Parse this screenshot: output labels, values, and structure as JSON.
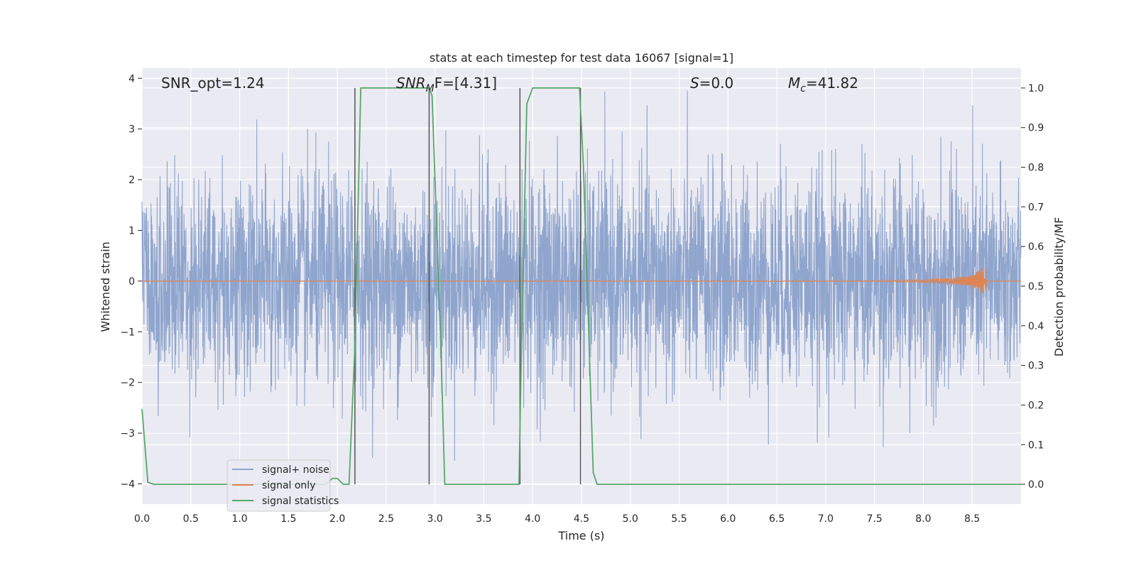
{
  "chart_data": {
    "type": "line",
    "title": "stats at each timestep for test data 16067 [signal=1]",
    "xlabel": "Time (s)",
    "ylabel": "Whitened strain",
    "y2label": "Detection probability/MF",
    "xlim": [
      0.0,
      9.0
    ],
    "ylim": [
      -4.4,
      4.2
    ],
    "y2lim": [
      -0.05,
      1.05
    ],
    "x_ticks": [
      "0.0",
      "0.5",
      "1.0",
      "1.5",
      "2.0",
      "2.5",
      "3.0",
      "3.5",
      "4.0",
      "4.5",
      "5.0",
      "5.5",
      "6.0",
      "6.5",
      "7.0",
      "7.5",
      "8.0",
      "8.5"
    ],
    "y_ticks": [
      "−4",
      "−3",
      "−2",
      "−1",
      "0",
      "1",
      "2",
      "3",
      "4"
    ],
    "y2_ticks": [
      "0.0",
      "0.1",
      "0.2",
      "0.3",
      "0.4",
      "0.5",
      "0.6",
      "0.7",
      "0.8",
      "0.9",
      "1.0"
    ],
    "grid": true,
    "legend_position": "lower-left",
    "annotations": {
      "snr_opt": "SNR_opt=1.24",
      "snr_mf_base": "SNR",
      "snr_mf_sub": "M",
      "snr_mf_rest": "F=[4.31]",
      "s_italic": "S",
      "s_rest": "=0.0",
      "mc_base": "M",
      "mc_sub": "c",
      "mc_rest": "=41.82"
    },
    "series": [
      {
        "name": "signal+ noise",
        "color": "#8fa5cd",
        "axis": "left",
        "description_of_values": "whitened noise fluctuating roughly between -3.7 and 3.9"
      },
      {
        "name": "signal only",
        "color": "#dd8452",
        "axis": "left",
        "x": [
          0.0,
          7.5,
          8.0,
          8.3,
          8.5,
          8.6,
          8.64,
          8.65,
          9.0
        ],
        "amplitude": [
          0.0,
          0.01,
          0.03,
          0.06,
          0.12,
          0.25,
          0.32,
          0.0,
          0.0
        ]
      },
      {
        "name": "signal statistics",
        "color": "#55a868",
        "axis": "right",
        "x": [
          0.0,
          0.06,
          0.12,
          1.88,
          1.95,
          2.0,
          2.06,
          2.12,
          2.18,
          2.24,
          2.94,
          2.97,
          3.06,
          3.1,
          3.86,
          3.88,
          3.94,
          4.0,
          4.48,
          4.52,
          4.62,
          4.66,
          8.5,
          9.0
        ],
        "y": [
          0.19,
          0.005,
          0.0,
          0.0,
          0.015,
          0.015,
          0.0,
          0.0,
          0.35,
          1.0,
          1.0,
          0.98,
          0.35,
          0.0,
          0.0,
          0.28,
          0.96,
          1.0,
          1.0,
          0.8,
          0.03,
          0.0,
          0.0,
          0.0
        ]
      }
    ],
    "vertical_lines_x": [
      2.18,
      2.94,
      3.87,
      4.49
    ],
    "vertical_lines_range_y2": [
      0.0,
      1.0
    ]
  }
}
